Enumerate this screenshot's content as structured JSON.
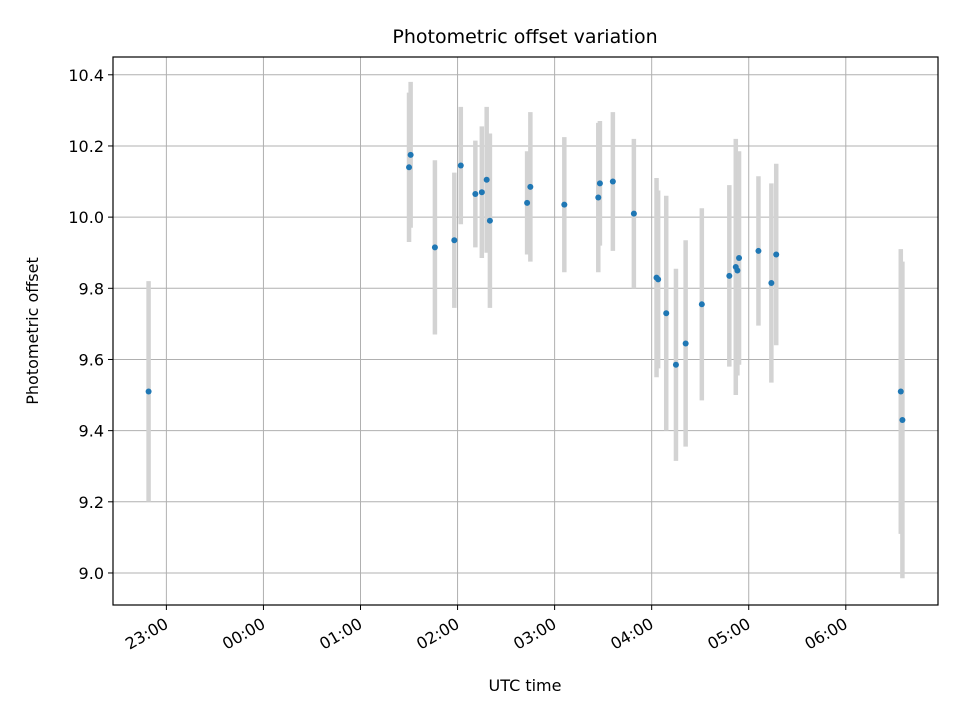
{
  "chart_data": {
    "type": "scatter",
    "title": "Photometric offset variation",
    "xlabel": "UTC time",
    "ylabel": "Photometric offset",
    "x_unit": "hours UTC (22.x = previous day)",
    "xlim": [
      "22:27",
      "06:57"
    ],
    "ylim": [
      8.91,
      10.45
    ],
    "x_ticks": [
      "23:00",
      "00:00",
      "01:00",
      "02:00",
      "03:00",
      "04:00",
      "05:00",
      "06:00"
    ],
    "y_ticks": [
      "9.0",
      "9.2",
      "9.4",
      "9.6",
      "9.8",
      "10.0",
      "10.2",
      "10.4"
    ],
    "grid": true,
    "marker_color": "#1f77b4",
    "errorbar_color": "#d3d3d3",
    "points": [
      {
        "time": "22:49",
        "y": 9.51,
        "err": 0.31
      },
      {
        "time": "01:30",
        "y": 10.14,
        "err": 0.21
      },
      {
        "time": "01:31",
        "y": 10.175,
        "err": 0.205
      },
      {
        "time": "01:46",
        "y": 9.915,
        "err": 0.245
      },
      {
        "time": "01:58",
        "y": 9.935,
        "err": 0.19
      },
      {
        "time": "02:02",
        "y": 10.145,
        "err": 0.165
      },
      {
        "time": "02:11",
        "y": 10.065,
        "err": 0.15
      },
      {
        "time": "02:15",
        "y": 10.07,
        "err": 0.185
      },
      {
        "time": "02:18",
        "y": 10.105,
        "err": 0.205
      },
      {
        "time": "02:20",
        "y": 9.99,
        "err": 0.245
      },
      {
        "time": "02:43",
        "y": 10.04,
        "err": 0.145
      },
      {
        "time": "02:45",
        "y": 10.085,
        "err": 0.21
      },
      {
        "time": "03:06",
        "y": 10.035,
        "err": 0.19
      },
      {
        "time": "03:27",
        "y": 10.055,
        "err": 0.21
      },
      {
        "time": "03:28",
        "y": 10.095,
        "err": 0.175
      },
      {
        "time": "03:36",
        "y": 10.1,
        "err": 0.195
      },
      {
        "time": "03:49",
        "y": 10.01,
        "err": 0.21
      },
      {
        "time": "04:03",
        "y": 9.83,
        "err": 0.28
      },
      {
        "time": "04:04",
        "y": 9.825,
        "err": 0.25
      },
      {
        "time": "04:09",
        "y": 9.73,
        "err": 0.33
      },
      {
        "time": "04:15",
        "y": 9.585,
        "err": 0.27
      },
      {
        "time": "04:21",
        "y": 9.645,
        "err": 0.29
      },
      {
        "time": "04:31",
        "y": 9.755,
        "err": 0.27
      },
      {
        "time": "04:48",
        "y": 9.835,
        "err": 0.255
      },
      {
        "time": "04:52",
        "y": 9.86,
        "err": 0.36
      },
      {
        "time": "04:53",
        "y": 9.85,
        "err": 0.295
      },
      {
        "time": "04:54",
        "y": 9.885,
        "err": 0.3
      },
      {
        "time": "05:06",
        "y": 9.905,
        "err": 0.21
      },
      {
        "time": "05:14",
        "y": 9.815,
        "err": 0.28
      },
      {
        "time": "05:17",
        "y": 9.895,
        "err": 0.255
      },
      {
        "time": "06:34",
        "y": 9.51,
        "err": 0.4
      },
      {
        "time": "06:35",
        "y": 9.43,
        "err": 0.445
      }
    ]
  }
}
